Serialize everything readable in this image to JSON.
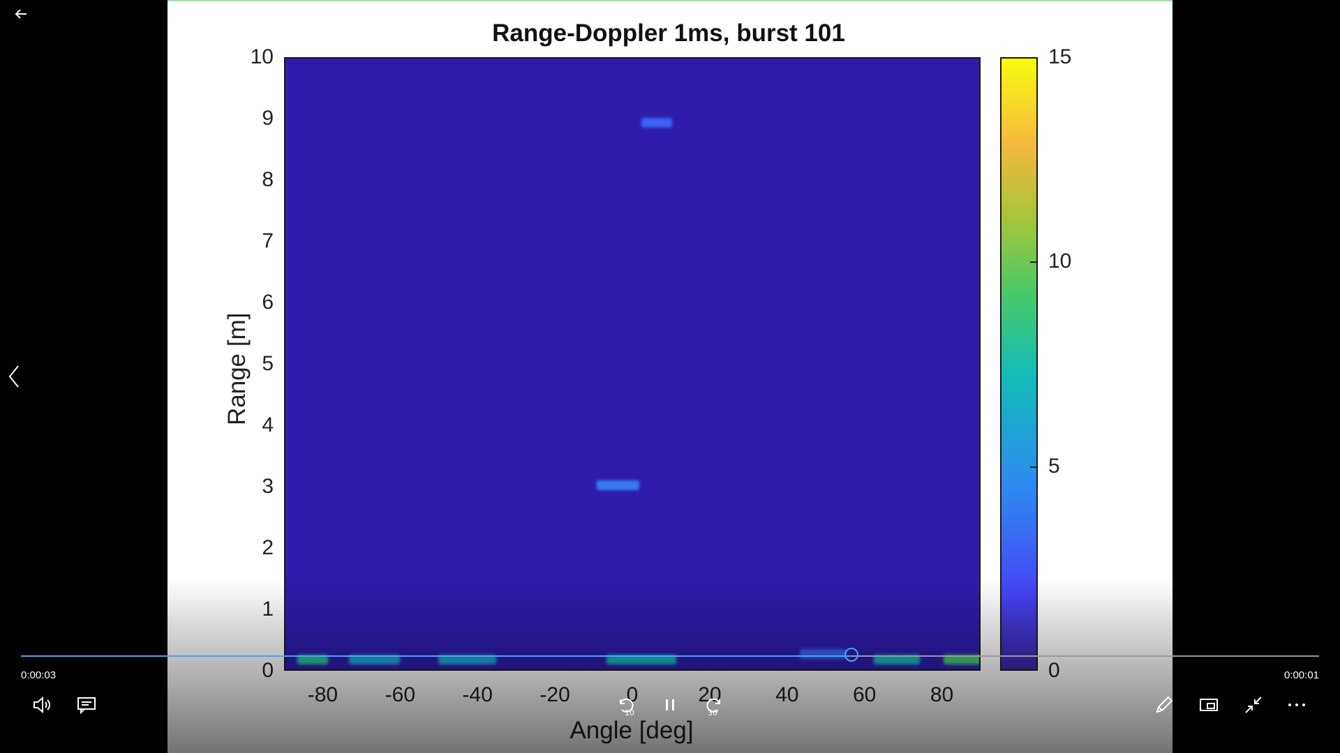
{
  "player": {
    "elapsed": "0:00:03",
    "remaining": "0:00:01",
    "progress_fraction": 0.64,
    "skip_back_label": "10",
    "skip_forward_label": "30"
  },
  "chart_data": {
    "type": "heatmap",
    "title": "Range-Doppler 1ms, burst 101",
    "xlabel": "Angle [deg]",
    "ylabel": "Range [m]",
    "xlim": [
      -90,
      90
    ],
    "ylim": [
      0,
      10
    ],
    "x_ticks": [
      "-80",
      "-60",
      "-40",
      "-20",
      "0",
      "20",
      "40",
      "60",
      "80"
    ],
    "y_ticks": [
      "0",
      "1",
      "2",
      "3",
      "4",
      "5",
      "6",
      "7",
      "8",
      "9",
      "10"
    ],
    "colorbar": {
      "range": [
        0,
        15
      ],
      "ticks": [
        "0",
        "5",
        "10",
        "15"
      ],
      "colormap": "parula"
    },
    "background_value": 0.5,
    "detections": [
      {
        "angle": 6,
        "range": 8.95,
        "angle_width": 8,
        "value": 3
      },
      {
        "angle": -4,
        "range": 3.05,
        "angle_width": 11,
        "value": 4
      },
      {
        "angle": -83,
        "range": 0.2,
        "angle_width": 8,
        "value": 8
      },
      {
        "angle": -67,
        "range": 0.2,
        "angle_width": 13,
        "value": 6
      },
      {
        "angle": -43,
        "range": 0.2,
        "angle_width": 15,
        "value": 6
      },
      {
        "angle": 2,
        "range": 0.2,
        "angle_width": 18,
        "value": 7
      },
      {
        "angle": 49,
        "range": 0.3,
        "angle_width": 12,
        "value": 3
      },
      {
        "angle": 68,
        "range": 0.2,
        "angle_width": 12,
        "value": 7
      },
      {
        "angle": 85,
        "range": 0.2,
        "angle_width": 10,
        "value": 9
      }
    ]
  }
}
